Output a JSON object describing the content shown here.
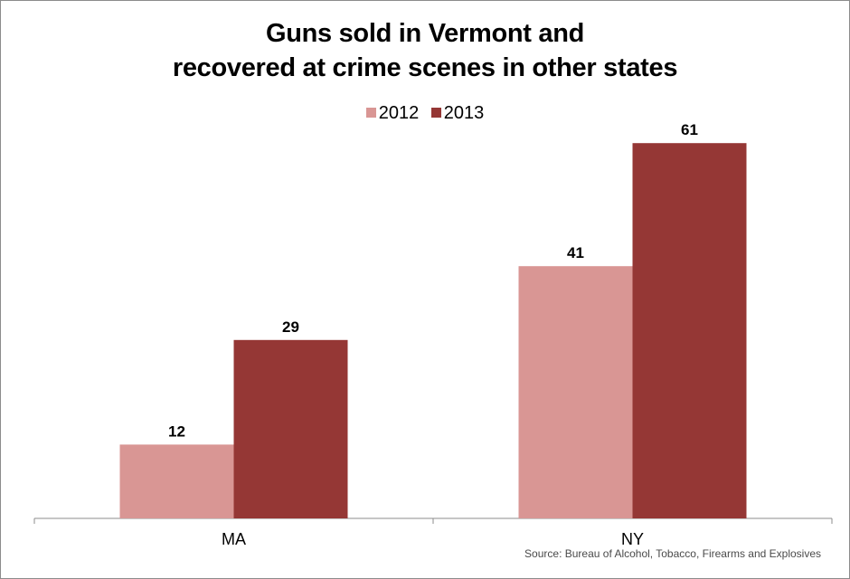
{
  "chart_data": {
    "type": "bar",
    "title_lines": [
      "Guns sold in Vermont and",
      "recovered at crime scenes in other states"
    ],
    "categories": [
      "MA",
      "NY"
    ],
    "series": [
      {
        "name": "2012",
        "values": [
          12,
          41
        ],
        "color": "#d99694"
      },
      {
        "name": "2013",
        "values": [
          29,
          61
        ],
        "color": "#953735"
      }
    ],
    "ylim": [
      0,
      70
    ],
    "grid": false,
    "legend_position": "top-center",
    "source": "Source: Bureau of Alcohol, Tobacco, Firearms and Explosives"
  }
}
